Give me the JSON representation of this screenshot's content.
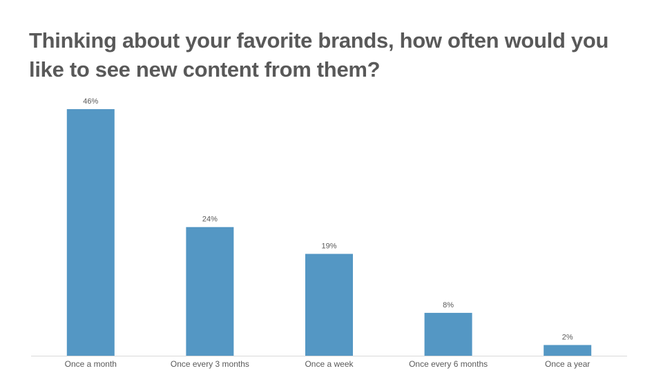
{
  "chart_data": {
    "type": "bar",
    "title": "Thinking about your favorite brands, how often would you like to see new content from them?",
    "categories": [
      "Once a month",
      "Once every 3 months",
      "Once a week",
      "Once every 6 months",
      "Once a year"
    ],
    "values": [
      46,
      24,
      19,
      8,
      2
    ],
    "value_labels": [
      "46%",
      "24%",
      "19%",
      "8%",
      "2%"
    ],
    "color": "#5497c4"
  }
}
